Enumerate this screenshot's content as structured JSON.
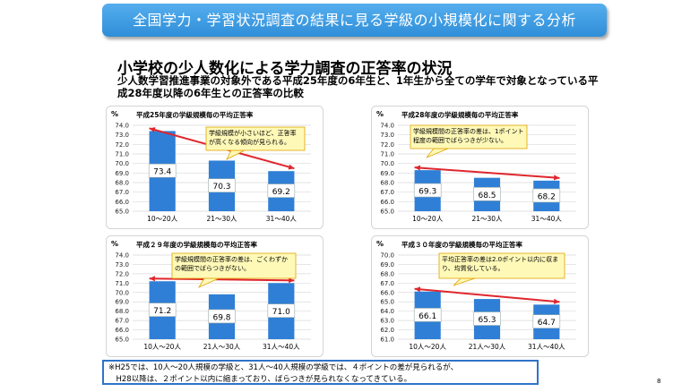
{
  "header": {
    "title": "全国学力・学習状況調査の結果に見る学級の小規模化に関する分析"
  },
  "section": {
    "title": "小学校の少人数化による学力調査の正答率の状況",
    "description": "少人数学習推進事業の対象外である平成25年度の6年生と、1年生から全ての学年で対象となっている平成28年度以降の6年生との正答率の比較"
  },
  "footnote": {
    "line1": "※H25では、10人～20人規模の学級と、31人～40人規模の学級では、４ポイントの差が見られるが、",
    "line2": "　H28以降は、２ポイント以内に縮まっており、ばらつきが見られなくなってきている。"
  },
  "page_number": "8",
  "colors": {
    "banner": "#3d9be3",
    "bar": "#2f7fd6",
    "arrow": "#e0262d",
    "callout_fill": "#fff9b8",
    "callout_border": "#e0a400"
  },
  "chart_data": [
    {
      "type": "bar",
      "title": "平成25年度の学級規模毎の平均正答率",
      "unit": "%",
      "categories": [
        "10～20人",
        "21～30人",
        "31～40人"
      ],
      "values": [
        73.4,
        70.3,
        69.2
      ],
      "value_labels": [
        "73.4",
        "70.3",
        "69.2"
      ],
      "ylim": [
        65.0,
        74.0
      ],
      "yticks": [
        "74.0",
        "73.0",
        "72.0",
        "71.0",
        "70.0",
        "69.0",
        "68.0",
        "67.0",
        "66.0",
        "65.0"
      ],
      "grid": true,
      "annotation": "学級規模が小さいほど、正答率が高くなる傾向が見られる。"
    },
    {
      "type": "bar",
      "title": "平成28年度の学級規模毎の平均正答率",
      "unit": "%",
      "categories": [
        "10～20人",
        "21～30人",
        "31～40人"
      ],
      "values": [
        69.3,
        68.5,
        68.2
      ],
      "value_labels": [
        "69.3",
        "68.5",
        "68.2"
      ],
      "ylim": [
        65.0,
        74.0
      ],
      "yticks": [
        "74.0",
        "73.0",
        "72.0",
        "71.0",
        "70.0",
        "69.0",
        "68.0",
        "67.0",
        "66.0",
        "65.0"
      ],
      "grid": true,
      "annotation": "学級規模間の正答率の差は、1ポイント程度の範囲でばらつきが少ない。"
    },
    {
      "type": "bar",
      "title": "平成２９年度の学級規模毎の平均正答率",
      "unit": "%",
      "categories": [
        "10人～20人",
        "21人～30人",
        "31人～40人"
      ],
      "values": [
        71.2,
        69.8,
        71.0
      ],
      "value_labels": [
        "71.2",
        "69.8",
        "71.0"
      ],
      "ylim": [
        65.0,
        74.0
      ],
      "yticks": [
        "74.0",
        "73.0",
        "72.0",
        "71.0",
        "70.0",
        "69.0",
        "68.0",
        "67.0",
        "66.0",
        "65.0"
      ],
      "grid": true,
      "annotation": "学級規模間の正答率の差は、ごくわずかの範囲でばらつきがない。"
    },
    {
      "type": "bar",
      "title": "平成３０年度の学級規模毎の平均正答率",
      "unit": "%",
      "categories": [
        "10人～20人",
        "21人～30人",
        "31人～40人"
      ],
      "values": [
        66.1,
        65.3,
        64.7
      ],
      "value_labels": [
        "66.1",
        "65.3",
        "64.7"
      ],
      "ylim": [
        61.0,
        70.0
      ],
      "yticks": [
        "70.0",
        "69.0",
        "68.0",
        "67.0",
        "66.0",
        "65.0",
        "64.0",
        "63.0",
        "62.0",
        "61.0"
      ],
      "grid": true,
      "annotation": "平均正答率の差は2.0ポイント以内に収まり、均質化している。"
    }
  ]
}
